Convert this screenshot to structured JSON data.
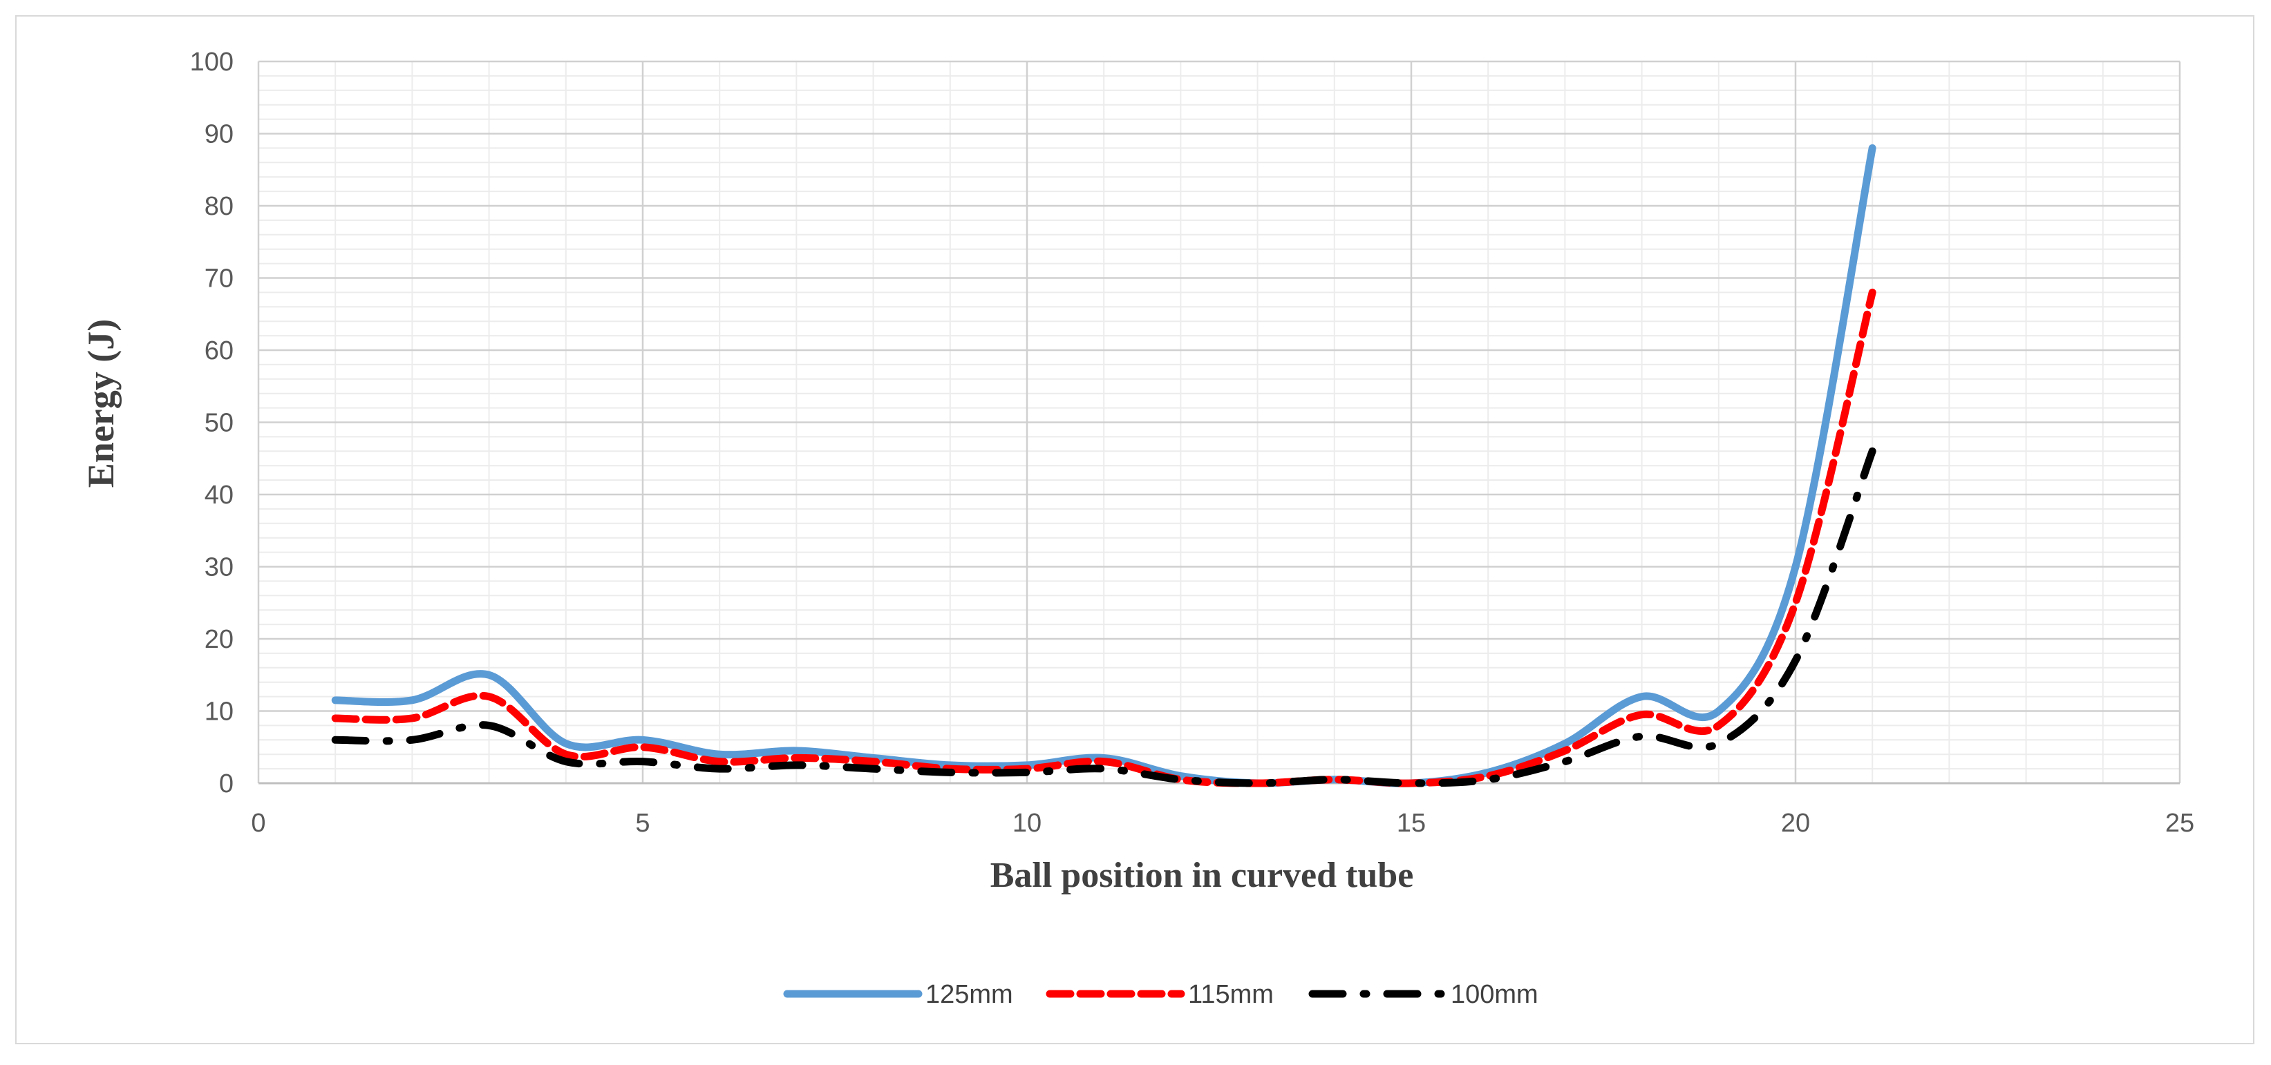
{
  "chart_data": {
    "type": "line",
    "title": "",
    "xlabel": "Ball position in curved tube",
    "ylabel": "Energy (J)",
    "xlim": [
      0,
      25
    ],
    "ylim": [
      0,
      100
    ],
    "x_ticks": [
      0,
      5,
      10,
      15,
      20,
      25
    ],
    "y_ticks": [
      0,
      10,
      20,
      30,
      40,
      50,
      60,
      70,
      80,
      90,
      100
    ],
    "x_tick_labels": [
      "0",
      "5",
      "10",
      "15",
      "20",
      "25"
    ],
    "y_tick_labels": [
      "0",
      "10",
      "20",
      "30",
      "40",
      "50",
      "60",
      "70",
      "80",
      "90",
      "100"
    ],
    "grid": true,
    "minor_grid": true,
    "smooth": true,
    "legend_position": "bottom",
    "x": [
      1,
      2,
      3,
      4,
      5,
      6,
      7,
      8,
      9,
      10,
      11,
      12,
      13,
      14,
      15,
      16,
      17,
      18,
      19,
      20,
      21
    ],
    "series": [
      {
        "name": "125mm",
        "color": "#5b9bd5",
        "dash": "solid",
        "values": [
          11.5,
          11.5,
          15,
          5.5,
          6,
          4,
          4.5,
          3.5,
          2.5,
          2.5,
          3.5,
          1,
          0,
          0.5,
          0,
          1.5,
          5.5,
          12,
          10,
          30,
          88
        ]
      },
      {
        "name": "115mm",
        "color": "#ff0000",
        "dash": "dashed",
        "values": [
          9,
          9,
          12,
          4,
          5,
          3,
          3.5,
          3,
          2,
          2,
          3,
          0.5,
          0,
          0.5,
          0,
          1,
          4.5,
          9.5,
          8,
          25,
          68
        ]
      },
      {
        "name": "100mm",
        "color": "#000000",
        "dash": "dash-dot",
        "values": [
          6,
          6,
          8,
          3,
          3,
          2,
          2.5,
          2,
          1.5,
          1.5,
          2,
          0.5,
          0,
          0.5,
          0,
          0.5,
          3,
          6.5,
          5.5,
          17,
          46
        ]
      }
    ]
  }
}
